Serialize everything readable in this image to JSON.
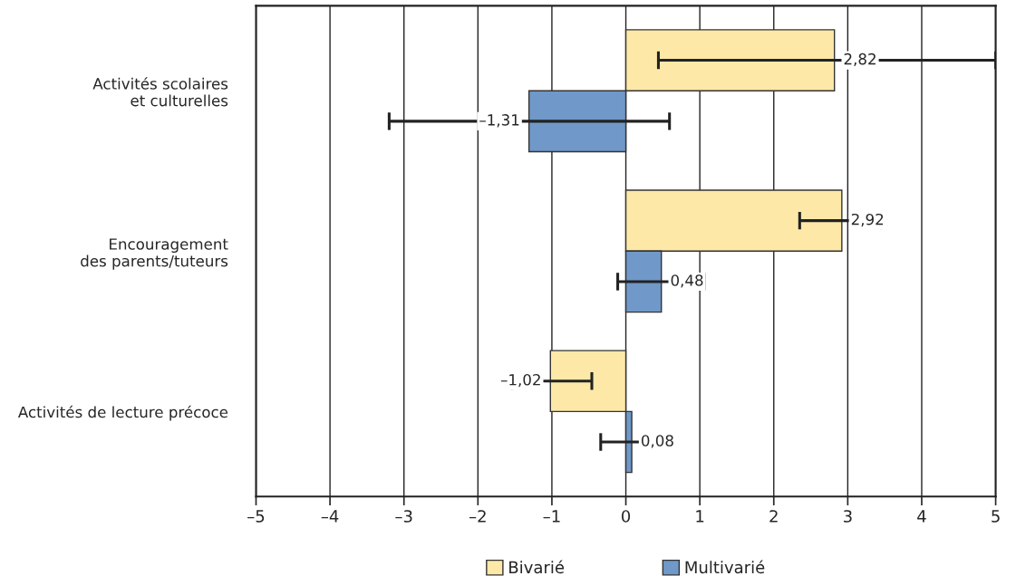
{
  "chart_data": {
    "type": "bar",
    "orientation": "horizontal",
    "categories": [
      "Activités scolaires\net culturelles",
      "Encouragement\ndes parents/tuteurs",
      "Activités de lecture précoce"
    ],
    "series": [
      {
        "name": "Bivarié",
        "color": "#fde8a8",
        "values": [
          2.82,
          2.92,
          -1.02
        ],
        "errors": [
          [
            0.44,
            5.0
          ],
          [
            2.35,
            3.45
          ],
          [
            -1.54,
            -0.46
          ]
        ],
        "value_labels": [
          "2,82",
          "2,92",
          "–1,02"
        ]
      },
      {
        "name": "Multivarié",
        "color": "#7098c8",
        "values": [
          -1.31,
          0.48,
          0.08
        ],
        "errors": [
          [
            -3.2,
            0.59
          ],
          [
            -0.11,
            1.06
          ],
          [
            -0.34,
            0.51
          ]
        ],
        "value_labels": [
          "–1,31",
          "0,48",
          "0,08"
        ]
      }
    ],
    "xlim": [
      -5,
      5
    ],
    "xticks": [
      {
        "value": -5,
        "label": "–5"
      },
      {
        "value": -4,
        "label": "–4"
      },
      {
        "value": -3,
        "label": "–3"
      },
      {
        "value": -2,
        "label": "–2"
      },
      {
        "value": -1,
        "label": "–1"
      },
      0,
      1,
      2,
      3,
      4,
      5
    ],
    "grid": "x",
    "legend": "bottom"
  }
}
